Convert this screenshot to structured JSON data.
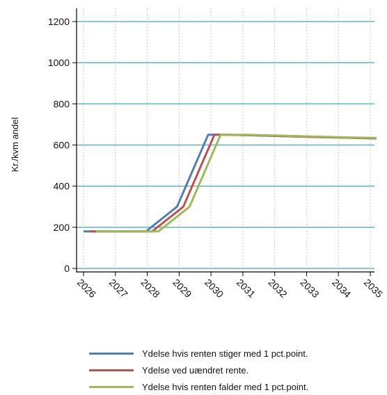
{
  "chart_data": {
    "type": "line",
    "title": "",
    "xlabel": "",
    "ylabel": "Kr./kvm andel",
    "ylim": [
      0,
      1200
    ],
    "y_ticks": [
      0,
      200,
      400,
      600,
      800,
      1000,
      1200
    ],
    "x_ticks": [
      "2026",
      "2027",
      "2028",
      "2029",
      "2030",
      "2031",
      "2032",
      "2033",
      "2034",
      "2035"
    ],
    "grid": "horizontal solid, vertical dotted",
    "legend_position": "bottom",
    "series": [
      {
        "name": "Ydelse hvis renten stiger med 1 pct.point.",
        "color": "#4f7fb5",
        "points": [
          [
            2025.8,
            180
          ],
          [
            2027.8,
            180
          ],
          [
            2028.8,
            300
          ],
          [
            2029.8,
            650
          ],
          [
            2030.3,
            650
          ],
          [
            2031,
            648
          ],
          [
            2032,
            644
          ],
          [
            2033,
            640
          ],
          [
            2034,
            636
          ],
          [
            2035.2,
            632
          ]
        ]
      },
      {
        "name": "Ydelse ved uændret rente.",
        "color": "#c0504d",
        "points": [
          [
            2026,
            180
          ],
          [
            2028,
            180
          ],
          [
            2029,
            300
          ],
          [
            2030,
            650
          ],
          [
            2030.4,
            650
          ],
          [
            2031,
            648
          ],
          [
            2032,
            644
          ],
          [
            2033,
            640
          ],
          [
            2034,
            636
          ],
          [
            2035.2,
            632
          ]
        ]
      },
      {
        "name": "Ydelse hvis renten falder med 1 pct.point.",
        "color": "#9bbb59",
        "points": [
          [
            2026.2,
            180
          ],
          [
            2028.2,
            180
          ],
          [
            2029.2,
            300
          ],
          [
            2030.2,
            650
          ],
          [
            2031,
            650
          ],
          [
            2032,
            646
          ],
          [
            2033,
            642
          ],
          [
            2034,
            638
          ],
          [
            2035.2,
            634
          ]
        ]
      }
    ]
  }
}
